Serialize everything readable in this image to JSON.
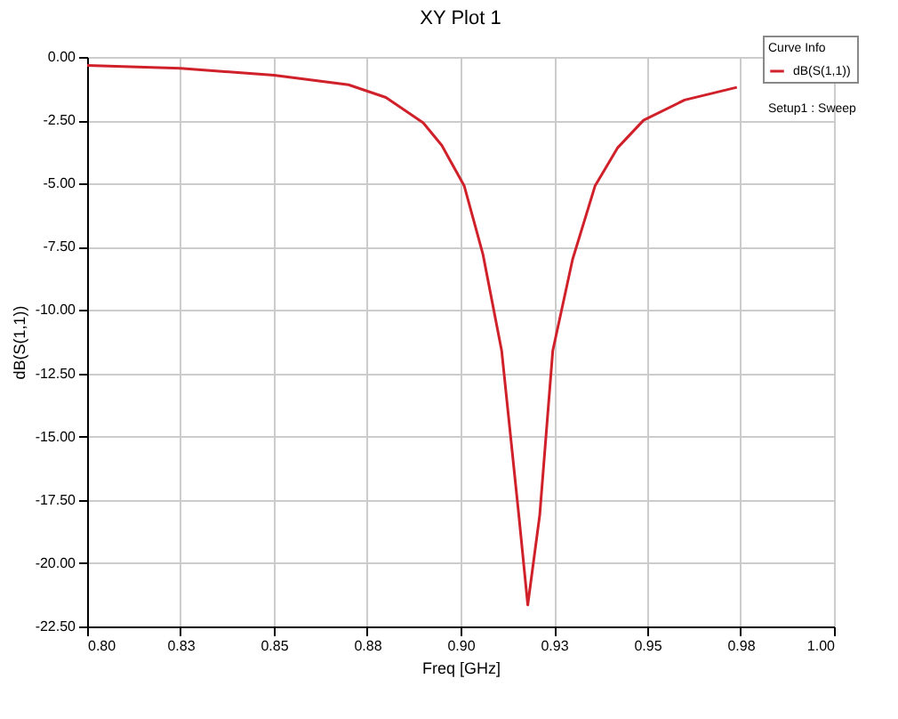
{
  "chart_data": {
    "type": "line",
    "title": "XY Plot 1",
    "xlabel": "Freq [GHz]",
    "ylabel": "dB(S(1,1))",
    "legend_title": "Curve Info",
    "annotations": [
      "Setup1 : Sweep"
    ],
    "series": [
      {
        "name": "dB(S(1,1))",
        "color": "#d0202a",
        "x": [
          0.8,
          0.825,
          0.85,
          0.87,
          0.88,
          0.89,
          0.895,
          0.901,
          0.906,
          0.911,
          0.9156,
          0.918,
          0.9212,
          0.9247,
          0.93,
          0.936,
          0.942,
          0.949,
          0.96,
          0.974
        ],
        "values": [
          -0.33,
          -0.45,
          -0.72,
          -1.1,
          -1.6,
          -2.6,
          -3.5,
          -5.1,
          -7.8,
          -11.6,
          -18.1,
          -21.65,
          -18.1,
          -11.6,
          -8.0,
          -5.1,
          -3.6,
          -2.5,
          -1.7,
          -1.2
        ]
      }
    ],
    "xlim": [
      0.8,
      1.0
    ],
    "xticks": [
      {
        "value": 0.8,
        "label": "0.80"
      },
      {
        "value": 0.825,
        "label": "0.83"
      },
      {
        "value": 0.85,
        "label": "0.85"
      },
      {
        "value": 0.875,
        "label": "0.88"
      },
      {
        "value": 0.9,
        "label": "0.90"
      },
      {
        "value": 0.925,
        "label": "0.93"
      },
      {
        "value": 0.95,
        "label": "0.95"
      },
      {
        "value": 0.975,
        "label": "0.98"
      },
      {
        "value": 1.0,
        "label": "1.00"
      }
    ],
    "ylim": [
      -22.5,
      0
    ],
    "yticks": [
      {
        "value": 0,
        "label": "0.00"
      },
      {
        "value": -2.5,
        "label": "-2.50"
      },
      {
        "value": -5,
        "label": "-5.00"
      },
      {
        "value": -7.5,
        "label": "-7.50"
      },
      {
        "value": -10,
        "label": "-10.00"
      },
      {
        "value": -12.5,
        "label": "-12.50"
      },
      {
        "value": -15,
        "label": "-15.00"
      },
      {
        "value": -17.5,
        "label": "-17.50"
      },
      {
        "value": -20,
        "label": "-20.00"
      },
      {
        "value": -22.5,
        "label": "-22.50"
      }
    ],
    "grid": true,
    "legend": "top right",
    "line_style": "solid"
  }
}
